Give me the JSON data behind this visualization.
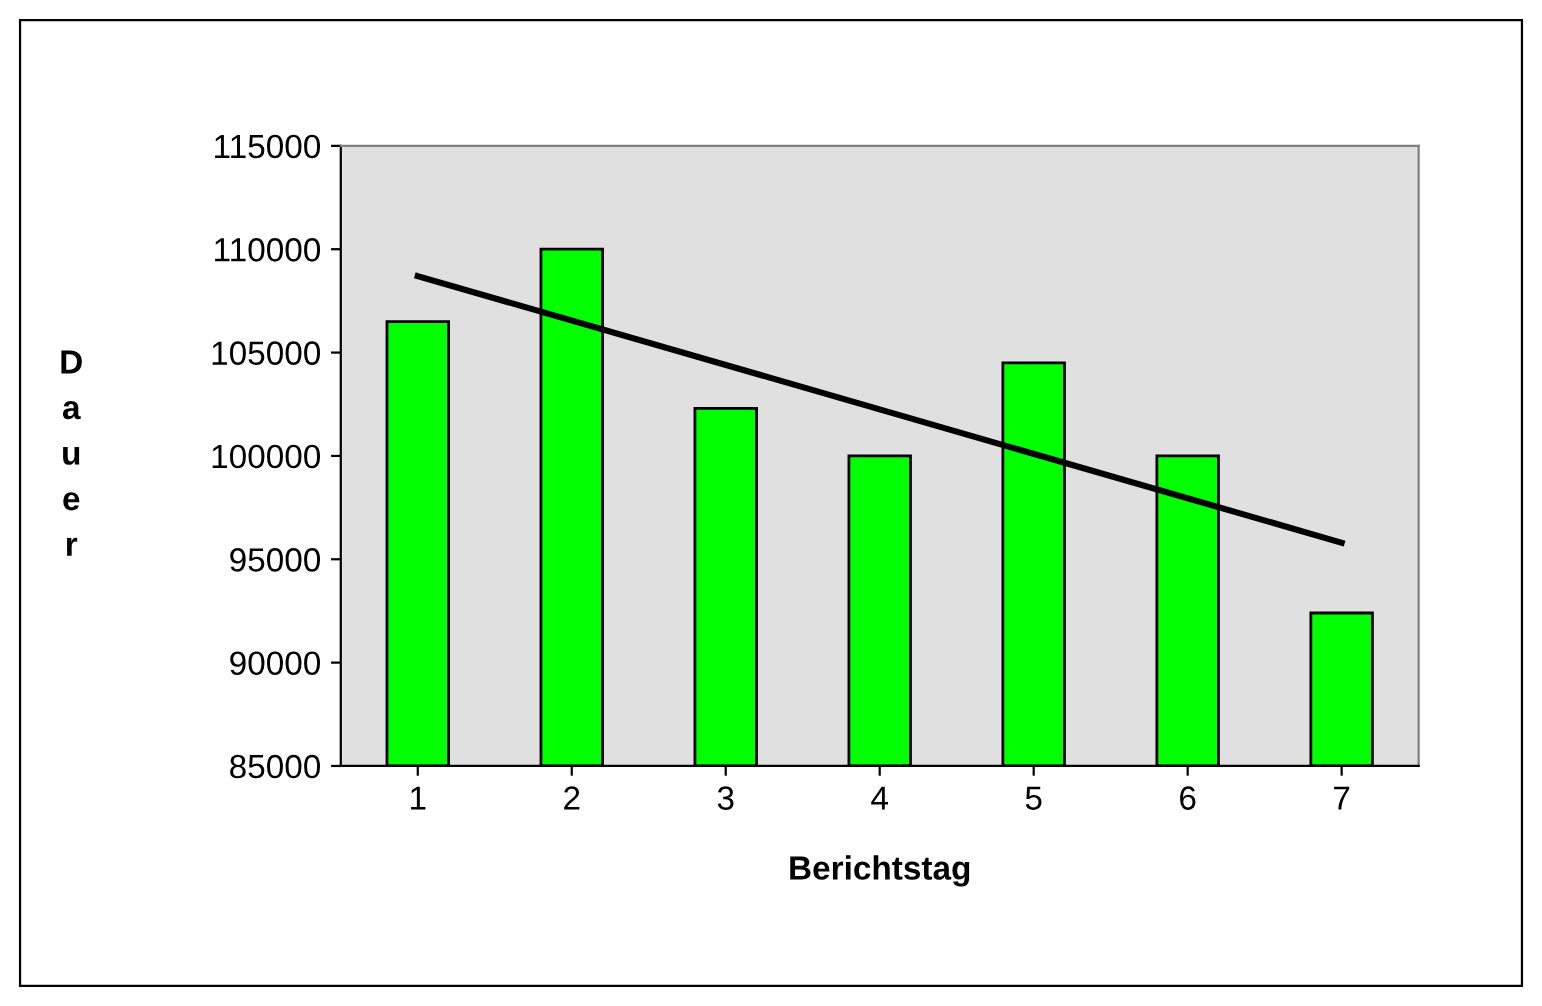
{
  "chart_data": {
    "type": "bar",
    "xlabel": "Berichtstag",
    "ylabel": "Dauer",
    "categories": [
      "1",
      "2",
      "3",
      "4",
      "5",
      "6",
      "7"
    ],
    "series": [
      {
        "color": "#00ff00",
        "values": [
          106500,
          110000,
          102300,
          100000,
          104500,
          100000,
          92400
        ]
      },
      {
        "type": "line",
        "color": "#000000",
        "x": [
          "1",
          "7"
        ],
        "values": [
          108700,
          95800
        ]
      }
    ],
    "ylim": [
      85000,
      115000
    ],
    "yticks": [
      85000,
      90000,
      95000,
      100000,
      105000,
      110000,
      115000
    ],
    "grid": false,
    "marker": "none",
    "line_style": "solid"
  }
}
